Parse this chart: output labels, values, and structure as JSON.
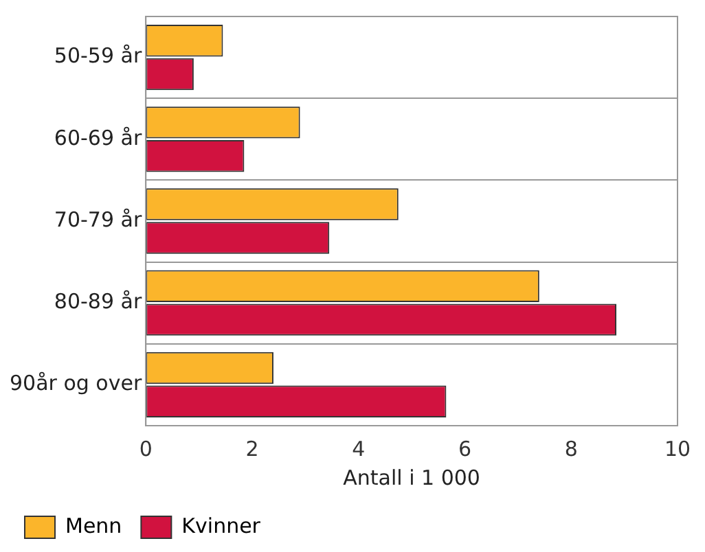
{
  "chart_data": {
    "type": "bar",
    "orientation": "horizontal",
    "xlabel": "Antall i 1 000",
    "categories": [
      "50-59 år",
      "60-69 år",
      "70-79 år",
      "80-89 år",
      "90år og over"
    ],
    "series": [
      {
        "name": "Menn",
        "color": "#fbb52b",
        "values": [
          1.45,
          2.9,
          4.75,
          7.4,
          2.4
        ]
      },
      {
        "name": "Kvinner",
        "color": "#d1123f",
        "values": [
          0.9,
          1.85,
          3.45,
          8.85,
          5.65
        ]
      }
    ],
    "xlim": [
      0,
      10
    ],
    "xticks": [
      0,
      2,
      4,
      6,
      8,
      10
    ],
    "grid": "y",
    "legend": "bottom left"
  }
}
